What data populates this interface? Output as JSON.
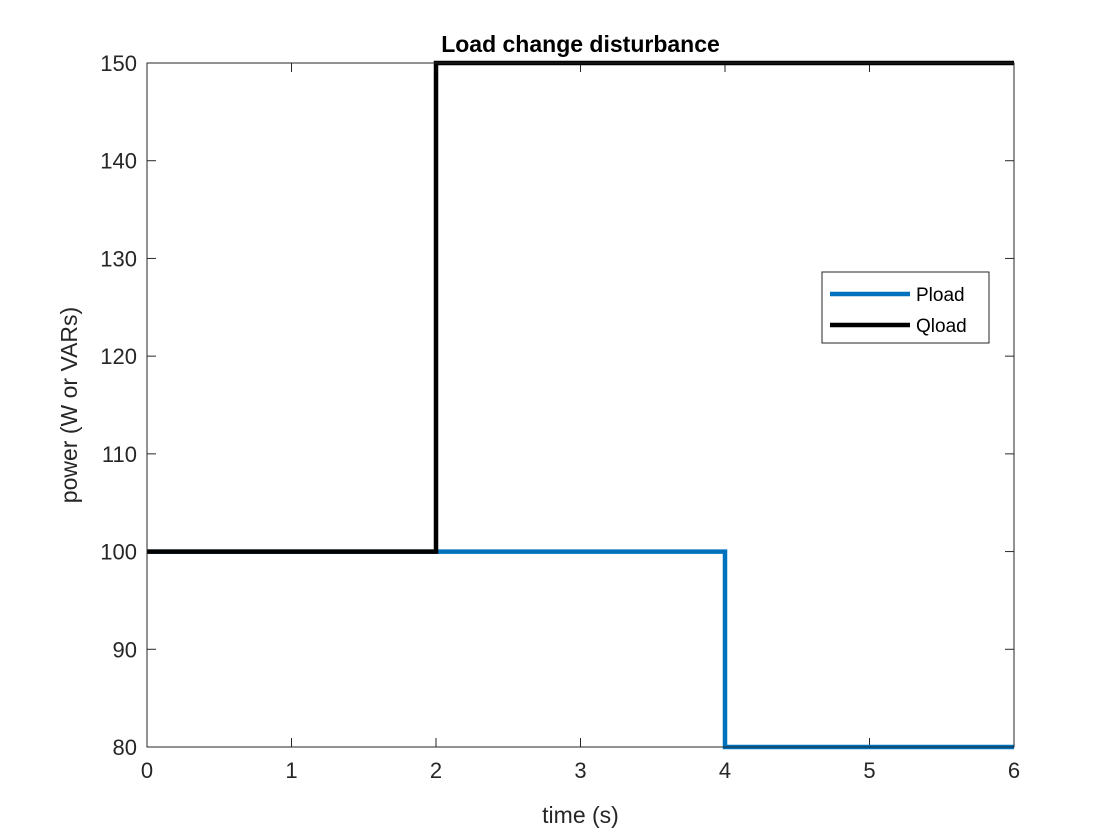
{
  "chart_data": {
    "type": "line",
    "title": "Load change disturbance",
    "xlabel": "time (s)",
    "ylabel": "power (W or VARs)",
    "xlim": [
      0,
      6
    ],
    "ylim": [
      80,
      150
    ],
    "xticks": [
      "0",
      "1",
      "2",
      "3",
      "4",
      "5",
      "6"
    ],
    "yticks": [
      "80",
      "90",
      "100",
      "110",
      "120",
      "130",
      "140",
      "150"
    ],
    "grid": false,
    "legend_position": "right",
    "series": [
      {
        "name": "Pload",
        "color": "#0072BD",
        "step": true,
        "x": [
          0,
          4,
          4,
          6
        ],
        "y": [
          100,
          100,
          80,
          80
        ]
      },
      {
        "name": "Qload",
        "color": "#000000",
        "step": true,
        "x": [
          0,
          2,
          2,
          6
        ],
        "y": [
          100,
          100,
          150,
          150
        ]
      }
    ]
  }
}
